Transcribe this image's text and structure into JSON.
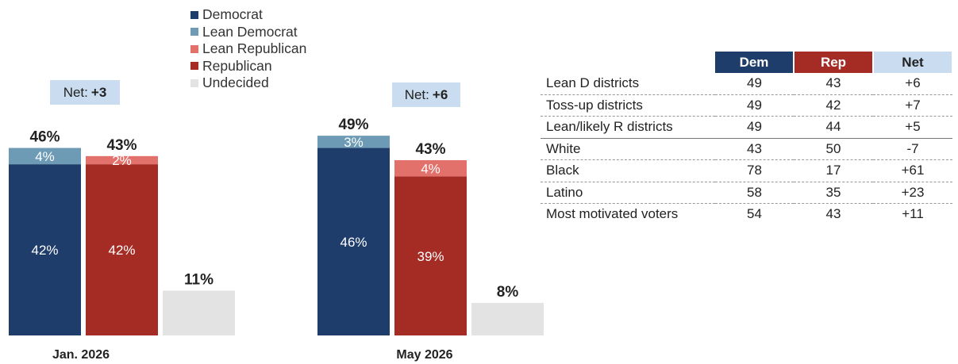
{
  "chart_data": {
    "type": "bar",
    "stacked": true,
    "legend": [
      "Democrat",
      "Lean Democrat",
      "Lean Republican",
      "Republican",
      "Undecided"
    ],
    "colors": {
      "Democrat": "#1f3d6b",
      "Lean Democrat": "#6d9ab4",
      "Lean Republican": "#e2716b",
      "Republican": "#a52b25",
      "Undecided": "#e3e3e3"
    },
    "groups": [
      {
        "label": "Jan. 2026",
        "net_label": "Net:",
        "net_value": "+3",
        "dem": {
          "total_label": "46%",
          "base": 42,
          "base_label": "42%",
          "lean": 4,
          "lean_label": "4%"
        },
        "rep": {
          "total_label": "43%",
          "base": 42,
          "base_label": "42%",
          "lean": 2,
          "lean_label": "2%"
        },
        "undecided": {
          "value": 11,
          "label": "11%"
        }
      },
      {
        "label": "May 2026",
        "net_label": "Net:",
        "net_value": "+6",
        "dem": {
          "total_label": "49%",
          "base": 46,
          "base_label": "46%",
          "lean": 3,
          "lean_label": "3%"
        },
        "rep": {
          "total_label": "43%",
          "base": 39,
          "base_label": "39%",
          "lean": 4,
          "lean_label": "4%"
        },
        "undecided": {
          "value": 8,
          "label": "8%"
        }
      }
    ]
  },
  "table": {
    "headers": [
      "Dem",
      "Rep",
      "Net"
    ],
    "header_colors": [
      "#1f3d6b",
      "#a52b25",
      "#c9dcf0"
    ],
    "rows": [
      {
        "label": "Lean D districts",
        "dem": "49",
        "rep": "43",
        "net": "+6"
      },
      {
        "label": "Toss-up districts",
        "dem": "49",
        "rep": "42",
        "net": "+7"
      },
      {
        "label": "Lean/likely R districts",
        "dem": "49",
        "rep": "44",
        "net": "+5"
      },
      {
        "label": "White",
        "dem": "43",
        "rep": "50",
        "net": "-7"
      },
      {
        "label": "Black",
        "dem": "78",
        "rep": "17",
        "net": "+61"
      },
      {
        "label": "Latino",
        "dem": "58",
        "rep": "35",
        "net": "+23"
      },
      {
        "label": "Most motivated voters",
        "dem": "54",
        "rep": "43",
        "net": "+11"
      }
    ]
  }
}
